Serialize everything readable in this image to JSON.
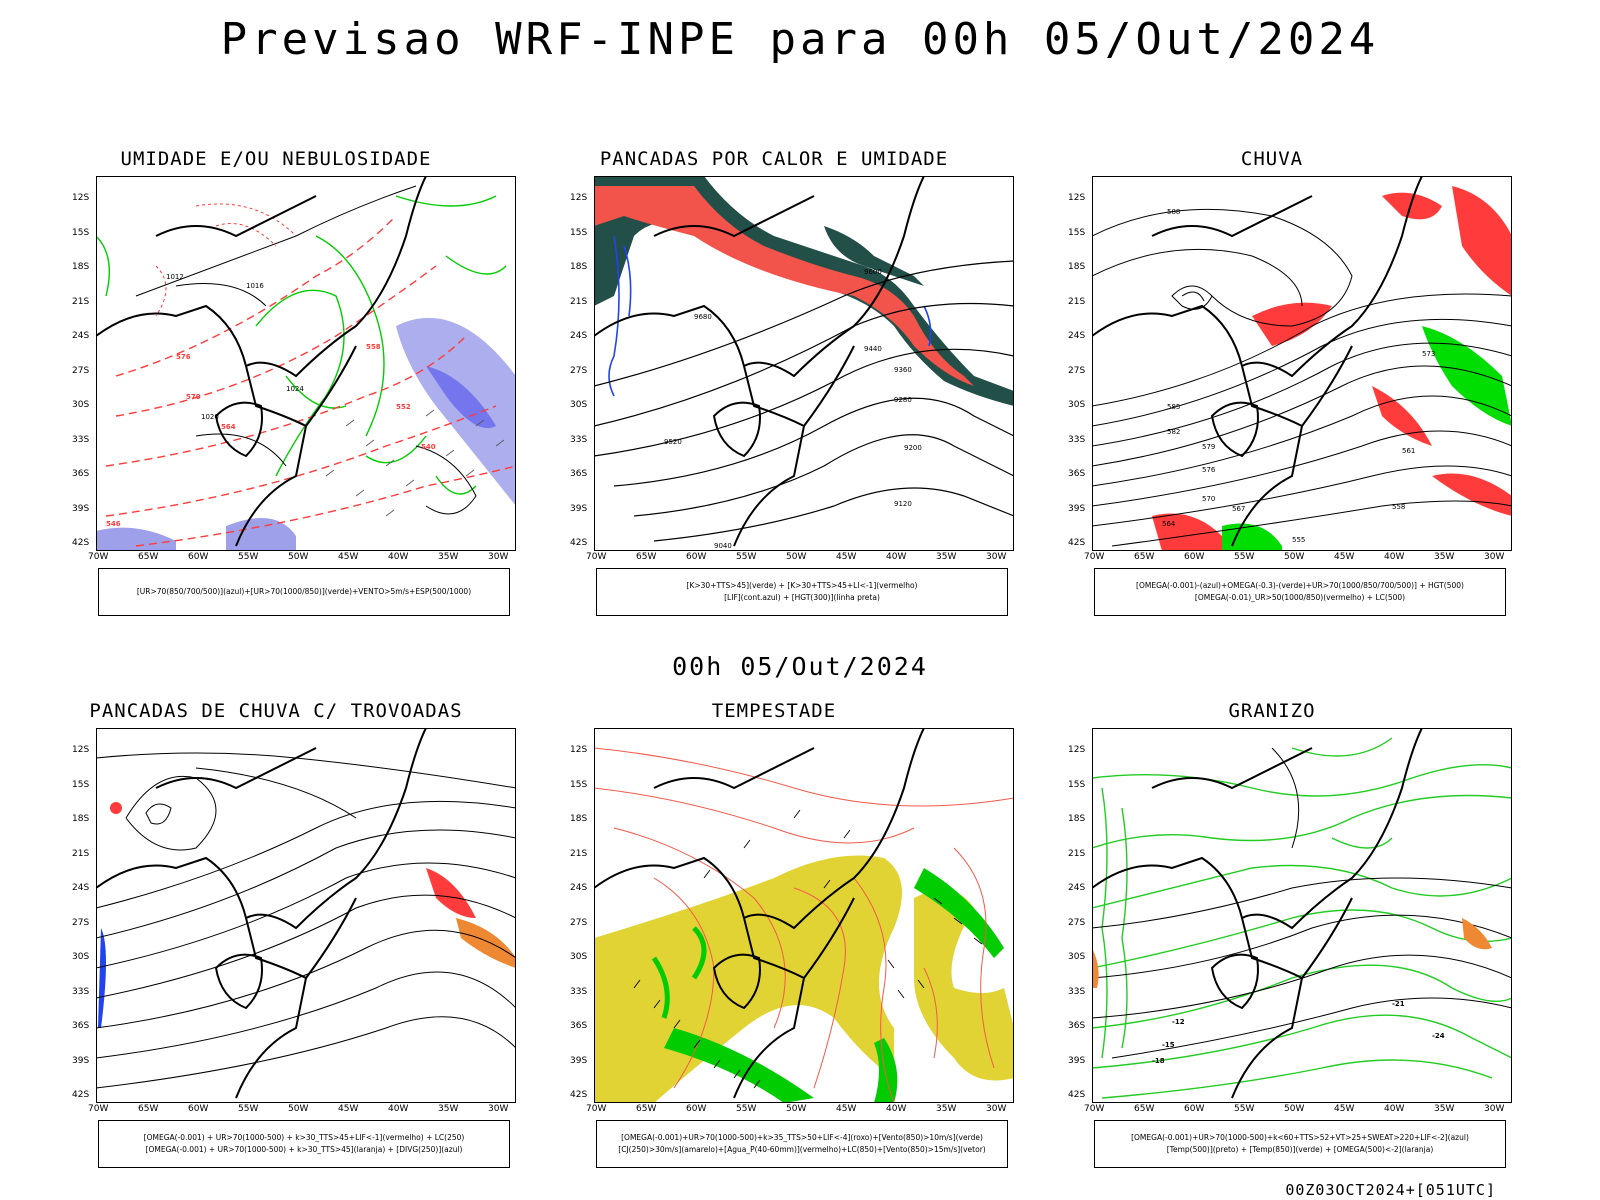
{
  "title": "Previsao WRF-INPE  para 00h 05/Out/2024",
  "mid_date": "00h 05/Out/2024",
  "footer": "00Z03OCT2024+[051UTC]",
  "lat_labels": [
    "12S",
    "15S",
    "18S",
    "21S",
    "24S",
    "27S",
    "30S",
    "33S",
    "36S",
    "39S",
    "42S"
  ],
  "lon_labels": [
    "70W",
    "65W",
    "60W",
    "55W",
    "50W",
    "45W",
    "40W",
    "35W",
    "30W"
  ],
  "panels": [
    {
      "title": "UMIDADE E/OU NEBULOSIDADE",
      "legend": [
        "[UR>70(850/700/500)](azul)+[UR>70(1000/850)](verde)+VENTO>5m/s+ESP(500/1000)"
      ],
      "labels": [
        "1012",
        "1016",
        "1020",
        "1024",
        "576",
        "570",
        "564",
        "558",
        "552",
        "546",
        "540"
      ]
    },
    {
      "title": "PANCADAS POR CALOR E UMIDADE",
      "legend": [
        "[K>30+TTS>45](verde) + [K>30+TTS>45+LI<-1](vermelho)",
        "[LIF](cont.azul) + [HGT(300)](linha preta)"
      ],
      "labels": [
        "9680",
        "9600",
        "9520",
        "9440",
        "9360",
        "9280",
        "9200",
        "9120",
        "9040"
      ]
    },
    {
      "title": "CHUVA",
      "legend": [
        "[OMEGA(-0.001)-(azul)+OMEGA(-0.3)-(verde)+UR>70(1000/850/700/500)] + HGT(500)",
        "[OMEGA(-0.01)_UR>50(1000/850)(vermelho) + LC(500)"
      ],
      "labels": [
        "588",
        "585",
        "582",
        "579",
        "576",
        "573",
        "570",
        "567",
        "564",
        "561",
        "558",
        "555"
      ]
    },
    {
      "title": "PANCADAS DE CHUVA C/ TROVOADAS",
      "legend": [
        "[OMEGA(-0.001) + UR>70(1000-500) + k>30_TTS>45+LIF<-1](vermelho) + LC(250)",
        "[OMEGA(-0.001) + UR>70(1000-500) + k>30_TTS>45](laranja) + [DIVG(250)](azul)"
      ],
      "labels": []
    },
    {
      "title": "TEMPESTADE",
      "legend": [
        "[OMEGA(-0.001)+UR>70(1000-500)+k>35_TTS>50+LIF<-4](roxo)+[Vento(850)>10m/s](verde)",
        "[CJ(250)>30m/s](amarelo)+[Agua_P(40-60mm)](vermelho)+LC(850)+[Vento(850)>15m/s](vetor)"
      ],
      "labels": []
    },
    {
      "title": "GRANIZO",
      "legend": [
        "[OMEGA(-0.001)+UR>70(1000-500)+k<60+TTS>52+VT>25+SWEAT>220+LIF<-2](azul)",
        "[Temp(500)](preto) + [Temp(850)](verde) + [OMEGA(500)<-2](laranja)"
      ],
      "labels": [
        "-12",
        "-15",
        "-18",
        "-21",
        "-24"
      ]
    }
  ],
  "colors": {
    "red": "#ff3b3b",
    "green": "#00dd00",
    "blue": "#2244ee",
    "lavender": "#9fa0ea",
    "yellow": "#e2d334",
    "teal": "#234f49",
    "orange": "#ee8833",
    "salmon": "#f25a4a"
  }
}
